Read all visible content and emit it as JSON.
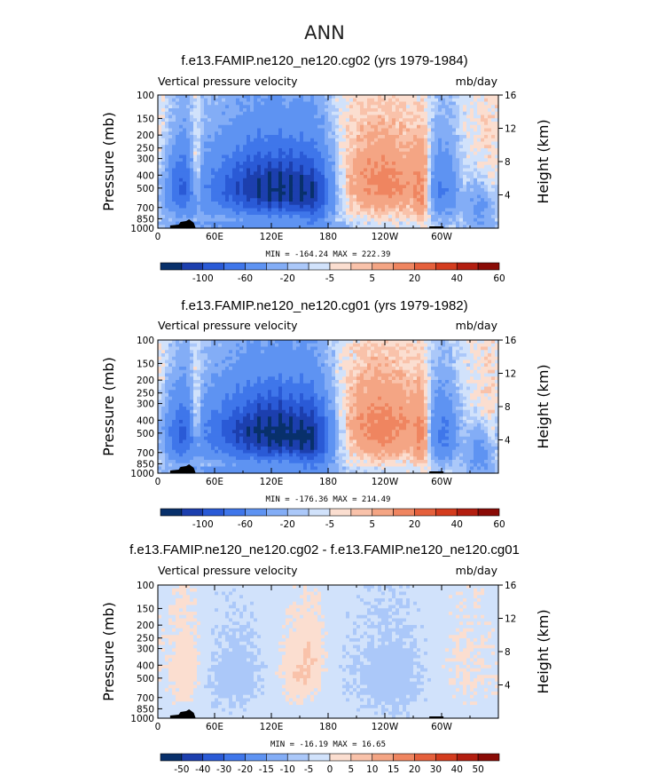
{
  "figure_title": "ANN",
  "chart_data": [
    {
      "type": "heatmap",
      "title": "f.e13.FAMIP.ne120_ne120.cg02 (yrs 1979-1984)",
      "variable_label": "Vertical pressure velocity",
      "units": "mb/day",
      "xlabel": "",
      "ylabel": "Pressure (mb)",
      "y2label": "Height (km)",
      "x_ticks": [
        "0",
        "60E",
        "120E",
        "180",
        "120W",
        "60W"
      ],
      "x_tick_values": [
        0,
        60,
        120,
        180,
        240,
        300
      ],
      "xlim": [
        0,
        360
      ],
      "y_ticks": [
        "100",
        "150",
        "200",
        "250",
        "300",
        "400",
        "500",
        "700",
        "850",
        "1000"
      ],
      "y_tick_values": [
        100,
        150,
        200,
        250,
        300,
        400,
        500,
        700,
        850,
        1000
      ],
      "ylim": [
        1000,
        100
      ],
      "y2_ticks": [
        "4",
        "8",
        "12",
        "16"
      ],
      "y2_tick_values": [
        4,
        8,
        12,
        16
      ],
      "stats": "MIN = -164.24   MAX = 222.39",
      "min": -164.24,
      "max": 222.39,
      "colorbar_labels": [
        "-100",
        "-60",
        "-20",
        "-5",
        "5",
        "20",
        "40",
        "60"
      ],
      "colorbar_colors": [
        "#08306b",
        "#1c3fae",
        "#2a5ad6",
        "#3f76ea",
        "#5e93f2",
        "#83adf6",
        "#abc8f9",
        "#d1e2fb",
        "#fbded0",
        "#f9c2aa",
        "#f4a584",
        "#ef8560",
        "#e5603c",
        "#d43c1e",
        "#b31e10",
        "#8a0b06"
      ]
    },
    {
      "type": "heatmap",
      "title": "f.e13.FAMIP.ne120_ne120.cg01 (yrs 1979-1982)",
      "variable_label": "Vertical pressure velocity",
      "units": "mb/day",
      "xlabel": "",
      "ylabel": "Pressure (mb)",
      "y2label": "Height (km)",
      "x_ticks": [
        "0",
        "60E",
        "120E",
        "180",
        "120W",
        "60W"
      ],
      "x_tick_values": [
        0,
        60,
        120,
        180,
        240,
        300
      ],
      "xlim": [
        0,
        360
      ],
      "y_ticks": [
        "100",
        "150",
        "200",
        "250",
        "300",
        "400",
        "500",
        "700",
        "850",
        "1000"
      ],
      "y_tick_values": [
        100,
        150,
        200,
        250,
        300,
        400,
        500,
        700,
        850,
        1000
      ],
      "ylim": [
        1000,
        100
      ],
      "y2_ticks": [
        "4",
        "8",
        "12",
        "16"
      ],
      "y2_tick_values": [
        4,
        8,
        12,
        16
      ],
      "stats": "MIN = -176.36   MAX = 214.49",
      "min": -176.36,
      "max": 214.49,
      "colorbar_labels": [
        "-100",
        "-60",
        "-20",
        "-5",
        "5",
        "20",
        "40",
        "60"
      ],
      "colorbar_colors": [
        "#08306b",
        "#1c3fae",
        "#2a5ad6",
        "#3f76ea",
        "#5e93f2",
        "#83adf6",
        "#abc8f9",
        "#d1e2fb",
        "#fbded0",
        "#f9c2aa",
        "#f4a584",
        "#ef8560",
        "#e5603c",
        "#d43c1e",
        "#b31e10",
        "#8a0b06"
      ]
    },
    {
      "type": "heatmap",
      "title": "f.e13.FAMIP.ne120_ne120.cg02 - f.e13.FAMIP.ne120_ne120.cg01",
      "variable_label": "Vertical pressure velocity",
      "units": "mb/day",
      "xlabel": "",
      "ylabel": "Pressure (mb)",
      "y2label": "Height (km)",
      "x_ticks": [
        "0",
        "60E",
        "120E",
        "180",
        "120W",
        "60W"
      ],
      "x_tick_values": [
        0,
        60,
        120,
        180,
        240,
        300
      ],
      "xlim": [
        0,
        360
      ],
      "y_ticks": [
        "100",
        "150",
        "200",
        "250",
        "300",
        "400",
        "500",
        "700",
        "850",
        "1000"
      ],
      "y_tick_values": [
        100,
        150,
        200,
        250,
        300,
        400,
        500,
        700,
        850,
        1000
      ],
      "ylim": [
        1000,
        100
      ],
      "y2_ticks": [
        "4",
        "8",
        "12",
        "16"
      ],
      "y2_tick_values": [
        4,
        8,
        12,
        16
      ],
      "stats": "MIN = -16.19   MAX =  16.65",
      "min": -16.19,
      "max": 16.65,
      "colorbar_labels": [
        "-50",
        "-40",
        "-30",
        "-20",
        "-15",
        "-10",
        "-5",
        "0",
        "5",
        "10",
        "15",
        "20",
        "30",
        "40",
        "50"
      ],
      "colorbar_colors": [
        "#08306b",
        "#1c3fae",
        "#2a5ad6",
        "#3f76ea",
        "#5e93f2",
        "#83adf6",
        "#abc8f9",
        "#d1e2fb",
        "#fbded0",
        "#f9c2aa",
        "#f4a584",
        "#ef8560",
        "#e5603c",
        "#d43c1e",
        "#b31e10",
        "#8a0b06"
      ]
    }
  ]
}
